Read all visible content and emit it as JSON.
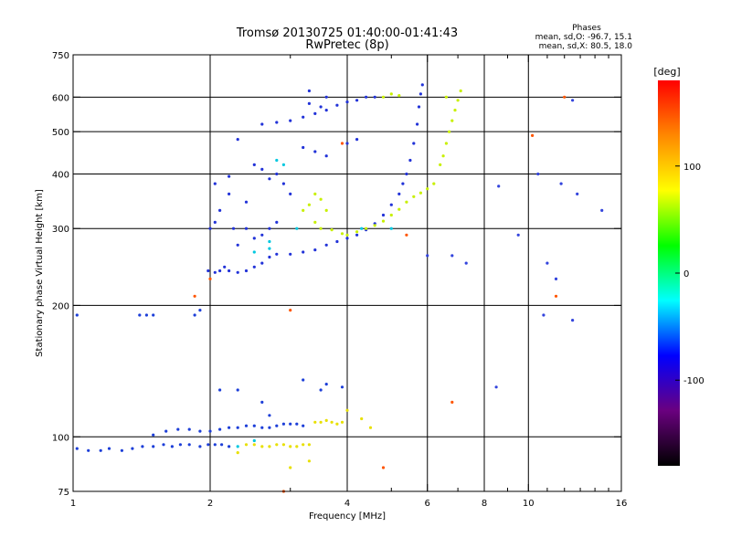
{
  "chart_data": {
    "type": "scatter",
    "title": "Tromsø 20130725 01:40:00-01:41:43",
    "subtitle": "RwPretec (8p)",
    "phase_legend": {
      "heading": "Phases",
      "line_o": "mean, sd,O: -96.7, 15.1",
      "line_x": "mean, sd,X:  80.5, 18.0"
    },
    "xlabel": "Frequency [MHz]",
    "ylabel": "Stationary phase Virtual Height [km]",
    "x_scale": "log",
    "y_scale": "log",
    "xlim": [
      1,
      16
    ],
    "ylim": [
      75,
      750
    ],
    "x_ticks": [
      {
        "v": 1,
        "label": "1"
      },
      {
        "v": 2,
        "label": "2"
      },
      {
        "v": 4,
        "label": "4"
      },
      {
        "v": 6,
        "label": "6"
      },
      {
        "v": 8,
        "label": "8"
      },
      {
        "v": 10,
        "label": "10"
      },
      {
        "v": 16,
        "label": "16"
      }
    ],
    "x_minor_ticks": [
      3,
      5,
      7,
      9,
      11,
      12,
      13,
      14,
      15
    ],
    "y_ticks": [
      {
        "v": 75,
        "label": "75"
      },
      {
        "v": 100,
        "label": "100"
      },
      {
        "v": 200,
        "label": "200"
      },
      {
        "v": 300,
        "label": "300"
      },
      {
        "v": 400,
        "label": "400"
      },
      {
        "v": 500,
        "label": "500"
      },
      {
        "v": 600,
        "label": "600"
      },
      {
        "v": 750,
        "label": "750"
      }
    ],
    "x_gridlines": [
      2,
      4,
      6,
      8,
      10
    ],
    "y_gridlines": [
      100,
      200,
      300,
      400,
      500,
      600
    ],
    "grid": true,
    "colorbar": {
      "unit": "deg",
      "range": [
        -180,
        180
      ],
      "ticks": [
        {
          "v": 100,
          "label": "100"
        },
        {
          "v": 0,
          "label": "0"
        },
        {
          "v": -100,
          "label": "-100"
        }
      ],
      "stops": [
        "#000000",
        "#6a007f",
        "#0000ff",
        "#00ffff",
        "#00ff00",
        "#ffff00",
        "#ff8800",
        "#ff0000"
      ]
    },
    "series": [
      {
        "trace": "E-layer O-mode (blue)",
        "color": "#1d3fd8",
        "points": [
          [
            1.02,
            94
          ],
          [
            1.08,
            93
          ],
          [
            1.15,
            93
          ],
          [
            1.2,
            94
          ],
          [
            1.28,
            93
          ],
          [
            1.35,
            94
          ],
          [
            1.42,
            95
          ],
          [
            1.5,
            95
          ],
          [
            1.58,
            96
          ],
          [
            1.65,
            95
          ],
          [
            1.72,
            96
          ],
          [
            1.8,
            96
          ],
          [
            1.9,
            95
          ],
          [
            1.98,
            96
          ],
          [
            2.05,
            96
          ],
          [
            2.12,
            96
          ],
          [
            2.2,
            95
          ],
          [
            1.5,
            101
          ],
          [
            1.6,
            103
          ],
          [
            1.7,
            104
          ],
          [
            1.8,
            104
          ],
          [
            1.9,
            103
          ],
          [
            2.0,
            103
          ],
          [
            2.1,
            104
          ],
          [
            2.2,
            105
          ],
          [
            2.3,
            105
          ],
          [
            2.4,
            106
          ],
          [
            2.5,
            106
          ],
          [
            2.6,
            105
          ],
          [
            2.7,
            105
          ],
          [
            2.8,
            106
          ],
          [
            2.9,
            107
          ],
          [
            3.0,
            107
          ],
          [
            3.1,
            107
          ],
          [
            3.2,
            106
          ],
          [
            1.02,
            190
          ],
          [
            1.4,
            190
          ],
          [
            1.45,
            190
          ],
          [
            1.5,
            190
          ],
          [
            1.85,
            190
          ],
          [
            1.9,
            195
          ],
          [
            2.1,
            128
          ],
          [
            2.3,
            128
          ],
          [
            2.6,
            120
          ],
          [
            2.7,
            112
          ],
          [
            3.2,
            135
          ],
          [
            3.5,
            128
          ],
          [
            3.6,
            132
          ],
          [
            3.9,
            130
          ]
        ]
      },
      {
        "trace": "E-layer X-mode (yellow)",
        "color": "#e8e000",
        "points": [
          [
            2.4,
            96
          ],
          [
            2.5,
            96
          ],
          [
            2.6,
            95
          ],
          [
            2.7,
            95
          ],
          [
            2.8,
            96
          ],
          [
            2.9,
            96
          ],
          [
            3.0,
            95
          ],
          [
            3.1,
            95
          ],
          [
            3.2,
            96
          ],
          [
            3.3,
            96
          ],
          [
            3.4,
            108
          ],
          [
            3.5,
            108
          ],
          [
            3.6,
            109
          ],
          [
            3.7,
            108
          ],
          [
            3.8,
            107
          ],
          [
            3.9,
            108
          ],
          [
            4.0,
            115
          ],
          [
            4.3,
            110
          ],
          [
            4.5,
            105
          ],
          [
            2.3,
            92
          ],
          [
            3.0,
            85
          ],
          [
            3.3,
            88
          ]
        ]
      },
      {
        "trace": "F2 O-mode trace (blue)",
        "color": "#2233d8",
        "points": [
          [
            1.98,
            240
          ],
          [
            2.05,
            238
          ],
          [
            2.1,
            240
          ],
          [
            2.15,
            245
          ],
          [
            2.2,
            240
          ],
          [
            2.3,
            238
          ],
          [
            2.4,
            240
          ],
          [
            2.5,
            245
          ],
          [
            2.6,
            250
          ],
          [
            2.7,
            258
          ],
          [
            2.8,
            262
          ],
          [
            3.0,
            262
          ],
          [
            3.2,
            265
          ],
          [
            3.4,
            268
          ],
          [
            3.6,
            275
          ],
          [
            3.8,
            280
          ],
          [
            4.0,
            285
          ],
          [
            4.2,
            290
          ],
          [
            4.4,
            298
          ],
          [
            4.6,
            308
          ],
          [
            4.8,
            322
          ],
          [
            5.0,
            340
          ],
          [
            5.2,
            360
          ],
          [
            5.3,
            380
          ],
          [
            5.4,
            400
          ],
          [
            5.5,
            430
          ],
          [
            5.6,
            470
          ],
          [
            5.7,
            520
          ],
          [
            5.75,
            570
          ],
          [
            5.8,
            610
          ],
          [
            5.85,
            640
          ],
          [
            2.3,
            275
          ],
          [
            2.4,
            300
          ],
          [
            2.5,
            285
          ],
          [
            2.6,
            290
          ],
          [
            2.7,
            300
          ],
          [
            2.8,
            310
          ],
          [
            2.0,
            300
          ],
          [
            2.05,
            310
          ],
          [
            2.25,
            300
          ],
          [
            2.1,
            330
          ],
          [
            2.2,
            360
          ],
          [
            2.4,
            345
          ],
          [
            2.5,
            420
          ],
          [
            2.6,
            410
          ],
          [
            2.7,
            390
          ],
          [
            2.8,
            400
          ],
          [
            2.9,
            380
          ],
          [
            3.0,
            360
          ],
          [
            3.2,
            460
          ],
          [
            3.4,
            450
          ],
          [
            3.6,
            440
          ],
          [
            4.0,
            470
          ],
          [
            4.2,
            480
          ],
          [
            2.3,
            480
          ],
          [
            2.6,
            520
          ],
          [
            2.8,
            525
          ],
          [
            3.0,
            530
          ],
          [
            3.2,
            540
          ],
          [
            3.4,
            550
          ],
          [
            3.6,
            560
          ],
          [
            3.8,
            575
          ],
          [
            4.0,
            585
          ],
          [
            4.2,
            590
          ],
          [
            4.4,
            600
          ],
          [
            4.6,
            600
          ],
          [
            3.3,
            580
          ],
          [
            3.5,
            570
          ],
          [
            3.6,
            600
          ],
          [
            3.3,
            620
          ],
          [
            2.05,
            380
          ],
          [
            2.2,
            395
          ]
        ]
      },
      {
        "trace": "F2 X-mode trace (yellow-green)",
        "color": "#c8f000",
        "points": [
          [
            3.5,
            300
          ],
          [
            3.7,
            298
          ],
          [
            3.9,
            292
          ],
          [
            4.0,
            290
          ],
          [
            4.2,
            295
          ],
          [
            4.4,
            300
          ],
          [
            4.6,
            305
          ],
          [
            4.8,
            312
          ],
          [
            5.0,
            322
          ],
          [
            5.2,
            332
          ],
          [
            5.4,
            345
          ],
          [
            5.6,
            355
          ],
          [
            5.8,
            362
          ],
          [
            6.0,
            370
          ],
          [
            6.2,
            380
          ],
          [
            6.4,
            420
          ],
          [
            6.5,
            440
          ],
          [
            6.6,
            470
          ],
          [
            6.7,
            500
          ],
          [
            6.8,
            530
          ],
          [
            6.9,
            560
          ],
          [
            7.0,
            590
          ],
          [
            7.1,
            620
          ],
          [
            6.6,
            600
          ],
          [
            3.2,
            330
          ],
          [
            3.3,
            340
          ],
          [
            3.4,
            360
          ],
          [
            3.5,
            350
          ],
          [
            3.6,
            330
          ],
          [
            3.4,
            310
          ],
          [
            5.0,
            610
          ],
          [
            5.2,
            605
          ],
          [
            4.8,
            600
          ]
        ]
      },
      {
        "trace": "Cyan points",
        "color": "#00c8e0",
        "points": [
          [
            2.5,
            265
          ],
          [
            2.7,
            270
          ],
          [
            2.3,
            95
          ],
          [
            2.5,
            98
          ],
          [
            2.7,
            280
          ],
          [
            3.1,
            300
          ],
          [
            2.8,
            430
          ],
          [
            2.9,
            420
          ],
          [
            4.3,
            300
          ],
          [
            5.0,
            300
          ]
        ]
      },
      {
        "trace": "Orange / red points",
        "color": "#ff5500",
        "points": [
          [
            1.85,
            210
          ],
          [
            2.0,
            230
          ],
          [
            3.9,
            470
          ],
          [
            4.8,
            85
          ],
          [
            5.4,
            290
          ],
          [
            6.8,
            120
          ],
          [
            10.2,
            490
          ],
          [
            11.5,
            210
          ],
          [
            12.0,
            600
          ],
          [
            3.0,
            195
          ],
          [
            2.9,
            75
          ]
        ]
      },
      {
        "trace": "Scattered high-frequency points",
        "color": "#3344dd",
        "points": [
          [
            6.8,
            260
          ],
          [
            8.6,
            375
          ],
          [
            9.5,
            290
          ],
          [
            10.5,
            400
          ],
          [
            10.8,
            190
          ],
          [
            11.0,
            250
          ],
          [
            11.5,
            230
          ],
          [
            12.5,
            590
          ],
          [
            12.8,
            360
          ],
          [
            14.5,
            330
          ],
          [
            12.5,
            185
          ],
          [
            11.8,
            380
          ],
          [
            7.3,
            250
          ],
          [
            8.5,
            130
          ],
          [
            6.0,
            260
          ]
        ]
      }
    ]
  }
}
